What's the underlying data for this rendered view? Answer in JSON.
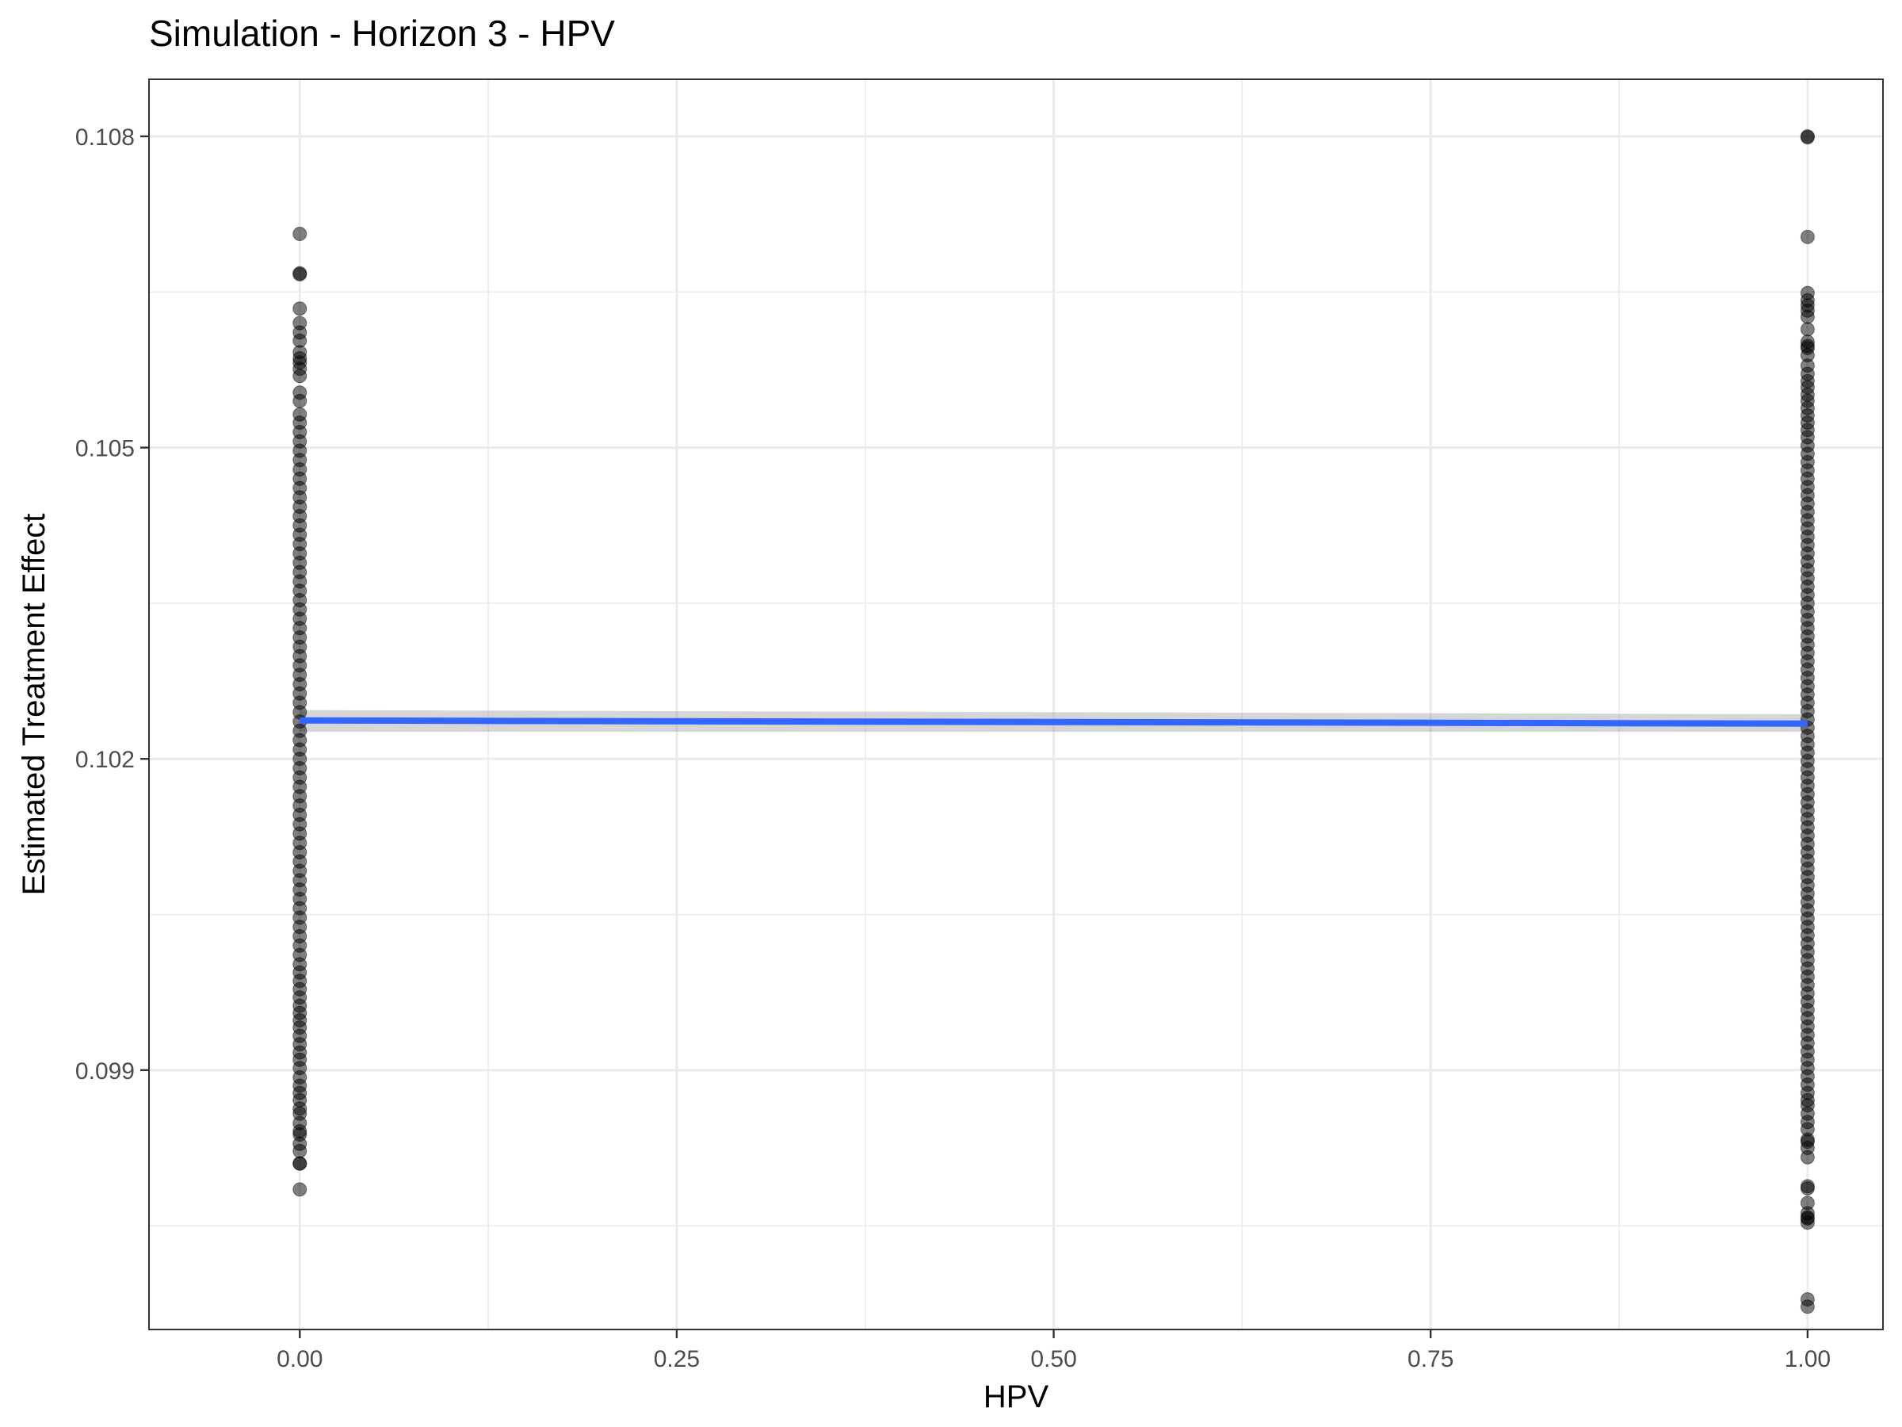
{
  "chart_data": {
    "type": "scatter",
    "title": "Simulation - Horizon 3 - HPV",
    "xlabel": "HPV",
    "ylabel": "Estimated Treatment Effect",
    "xlim": [
      -0.1,
      1.05
    ],
    "ylim": [
      0.0965,
      0.10855
    ],
    "x_ticks": [
      0,
      0.25,
      0.5,
      0.75,
      1
    ],
    "x_tick_labels": [
      "0.00",
      "0.25",
      "0.50",
      "0.75",
      "1.00"
    ],
    "y_ticks": [
      0.099,
      0.102,
      0.105,
      0.108
    ],
    "y_tick_labels": [
      "0.099",
      "0.102",
      "0.105",
      "0.108"
    ],
    "grid": true,
    "legend": "none",
    "colors": {
      "points": "#000000",
      "fit_line": "#3366FF",
      "ci_band": "#999999"
    },
    "series": [
      {
        "x": 0,
        "y": [
          0.10706,
          0.10668,
          0.10667,
          0.10634,
          0.1062,
          0.10611,
          0.10603,
          0.10592,
          0.10586,
          0.10582,
          0.10576,
          0.10569,
          0.10553,
          0.10545,
          0.10532,
          0.10524,
          0.10515,
          0.10506,
          0.10497,
          0.10488,
          0.10479,
          0.1047,
          0.10461,
          0.10452,
          0.10443,
          0.10434,
          0.10425,
          0.10416,
          0.10407,
          0.10398,
          0.10389,
          0.1038,
          0.10371,
          0.10362,
          0.10353,
          0.10344,
          0.10335,
          0.10326,
          0.10317,
          0.10308,
          0.10299,
          0.1029,
          0.10281,
          0.10272,
          0.10263,
          0.10254,
          0.10245,
          0.10236,
          0.10227,
          0.10218,
          0.10209,
          0.102,
          0.10191,
          0.10182,
          0.10173,
          0.10164,
          0.10155,
          0.10146,
          0.10137,
          0.10128,
          0.10119,
          0.1011,
          0.10101,
          0.10092,
          0.10083,
          0.10074,
          0.10065,
          0.10056,
          0.10047,
          0.10038,
          0.10029,
          0.1002,
          0.10011,
          0.10002,
          0.09994,
          0.09986,
          0.09978,
          0.0997,
          0.09962,
          0.09955,
          0.09948,
          0.09941,
          0.09933,
          0.09925,
          0.09917,
          0.0991,
          0.09902,
          0.09893,
          0.09885,
          0.09878,
          0.09871,
          0.09863,
          0.09858,
          0.09849,
          0.09841,
          0.09838,
          0.09829,
          0.09822,
          0.0981,
          0.0981,
          0.09785
        ]
      },
      {
        "x": 1,
        "y": [
          0.108,
          0.10799,
          0.10703,
          0.10649,
          0.10642,
          0.10637,
          0.10632,
          0.10626,
          0.10614,
          0.10602,
          0.10598,
          0.10596,
          0.10589,
          0.10579,
          0.10571,
          0.10564,
          0.10558,
          0.10551,
          0.10545,
          0.10538,
          0.10531,
          0.10524,
          0.10517,
          0.1051,
          0.10502,
          0.10494,
          0.10486,
          0.10478,
          0.1047,
          0.10462,
          0.10454,
          0.10446,
          0.10438,
          0.1043,
          0.10422,
          0.10414,
          0.10406,
          0.10398,
          0.1039,
          0.10382,
          0.10374,
          0.10366,
          0.10358,
          0.1035,
          0.10342,
          0.10334,
          0.10326,
          0.10318,
          0.1031,
          0.10302,
          0.10294,
          0.10286,
          0.10278,
          0.1027,
          0.10262,
          0.10254,
          0.10246,
          0.10238,
          0.1023,
          0.10222,
          0.10214,
          0.10206,
          0.10198,
          0.1019,
          0.10182,
          0.10174,
          0.10166,
          0.10158,
          0.1015,
          0.10142,
          0.10134,
          0.10126,
          0.10118,
          0.1011,
          0.10102,
          0.10094,
          0.10086,
          0.10078,
          0.1007,
          0.10062,
          0.10054,
          0.10046,
          0.10038,
          0.1003,
          0.10022,
          0.10014,
          0.10006,
          0.09998,
          0.0999,
          0.09982,
          0.09974,
          0.09966,
          0.09958,
          0.0995,
          0.09942,
          0.09934,
          0.09926,
          0.09918,
          0.0991,
          0.09902,
          0.09894,
          0.09886,
          0.09878,
          0.09871,
          0.09866,
          0.09858,
          0.0985,
          0.09843,
          0.09833,
          0.09831,
          0.09825,
          0.09816,
          0.09788,
          0.09786,
          0.09772,
          0.09762,
          0.09758,
          0.09757,
          0.09753,
          0.09679,
          0.09672
        ]
      }
    ],
    "smooth": {
      "method": "linear",
      "x": [
        0,
        1
      ],
      "y": [
        0.10237,
        0.10234
      ],
      "ymin": [
        0.10226,
        0.10226
      ],
      "ymax": [
        0.10247,
        0.10243
      ]
    }
  }
}
